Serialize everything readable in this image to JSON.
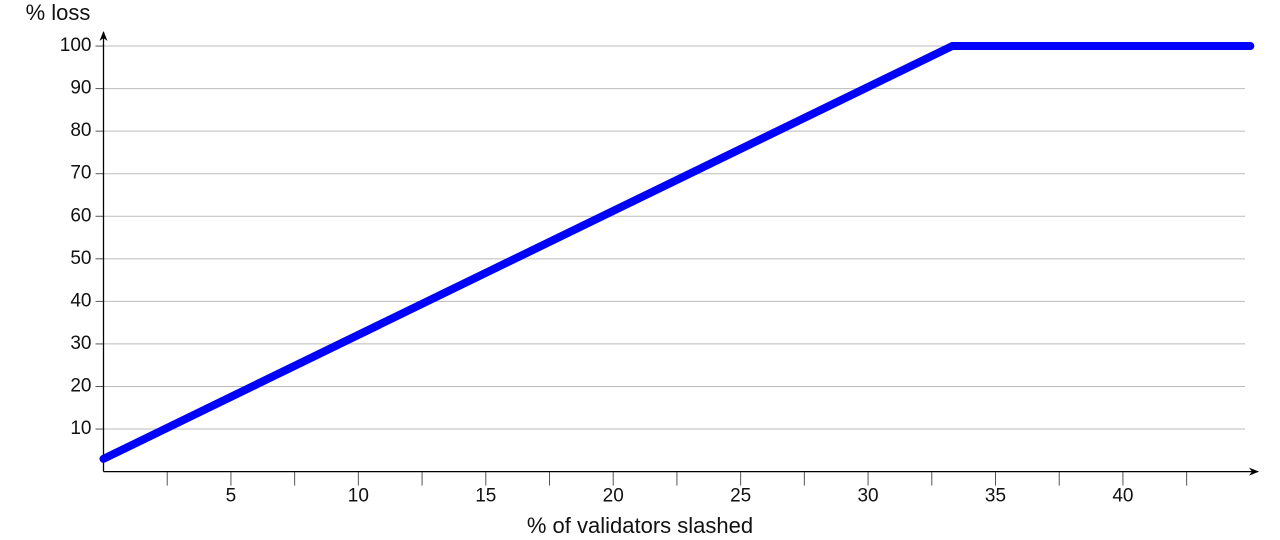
{
  "chart_data": {
    "type": "line",
    "x_label": "% of validators slashed",
    "y_label": "% loss",
    "x": [
      0,
      33.3,
      45
    ],
    "series": [
      {
        "name": "loss",
        "color": "#0000ff",
        "values": [
          3,
          100,
          100
        ]
      }
    ],
    "xlim": [
      0,
      45.3
    ],
    "ylim": [
      0,
      103.3
    ],
    "xticks": [
      5,
      10,
      15,
      20,
      25,
      30,
      35,
      40
    ],
    "xminorticks": [
      2.5,
      7.5,
      12.5,
      17.5,
      22.5,
      27.5,
      32.5,
      37.5,
      42.5
    ],
    "yticks": [
      10,
      20,
      30,
      40,
      50,
      60,
      70,
      80,
      90,
      100
    ],
    "grid": true
  }
}
